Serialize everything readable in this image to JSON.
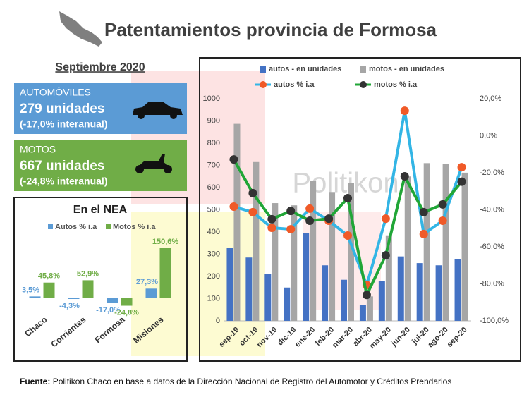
{
  "header": {
    "title": "Patentamientos provincia de Formosa",
    "period": "Septiembre 2020"
  },
  "cards": [
    {
      "label": "AUTOMÓVILES",
      "units": "279 unidades",
      "change": "(-17,0% interanual)"
    },
    {
      "label": "MOTOS",
      "units": "667 unidades",
      "change": "(-24,8% interanual)"
    }
  ],
  "chart_data": [
    {
      "type": "bar",
      "title": "En el NEA",
      "categories": [
        "Chaco",
        "Corrientes",
        "Formosa",
        "Misiones"
      ],
      "series": [
        {
          "name": "Autos % i.a",
          "color": "#5b9bd5",
          "values": [
            3.5,
            -4.3,
            -17.0,
            27.3
          ],
          "value_labels": [
            "3,5%",
            "-4,3%",
            "-17,0%",
            "27,3%"
          ]
        },
        {
          "name": "Motos % i.a",
          "color": "#70ad47",
          "values": [
            45.8,
            52.9,
            -24.8,
            150.6
          ],
          "value_labels": [
            "45,8%",
            "52,9%",
            "-24,8%",
            "150,6%"
          ]
        }
      ]
    },
    {
      "type": "combo",
      "watermark": "Politikon",
      "categories": [
        "sep-19",
        "oct-19",
        "nov-19",
        "dic-19",
        "ene-20",
        "feb-20",
        "mar-20",
        "abr-20",
        "may-20",
        "jun-20",
        "jul-20",
        "ago-20",
        "sep-20"
      ],
      "series": [
        {
          "name": "autos - en unidades",
          "type": "bar",
          "color": "#4472c4",
          "values": [
            330,
            285,
            210,
            150,
            395,
            250,
            185,
            70,
            178,
            290,
            260,
            250,
            279
          ]
        },
        {
          "name": "motos - en unidades",
          "type": "bar",
          "color": "#a6a6a6",
          "values": [
            887,
            715,
            530,
            520,
            630,
            580,
            620,
            110,
            385,
            650,
            710,
            705,
            667
          ]
        },
        {
          "name": "autos % i.a",
          "type": "line",
          "axis": "y2",
          "color": "#33b5e5",
          "marker_color": "#f05a28",
          "values": [
            -38.3,
            -41.3,
            -49.7,
            -50.5,
            -39.4,
            -45.9,
            -53.9,
            -80.6,
            -44.8,
            13.5,
            -53.1,
            -45.9,
            -17.0
          ]
        },
        {
          "name": "motos % i.a",
          "type": "line",
          "axis": "y2",
          "color": "#21a637",
          "marker_color": "#333333",
          "values": [
            -12.8,
            -31.0,
            -45.1,
            -40.6,
            -45.9,
            -44.8,
            -33.7,
            -86.0,
            -64.6,
            -21.9,
            -41.3,
            -37.1,
            -24.8
          ]
        }
      ],
      "ylim": [
        0,
        1000
      ],
      "yticks": [
        0,
        100,
        200,
        300,
        400,
        500,
        600,
        700,
        800,
        900,
        1000
      ],
      "y2lim": [
        -100,
        20
      ],
      "y2ticks": [
        {
          "value": -100,
          "label": "-100,0%"
        },
        {
          "value": -80,
          "label": "-80,0%"
        },
        {
          "value": -60,
          "label": "-60,0%"
        },
        {
          "value": -40,
          "label": "-40,0%"
        },
        {
          "value": -20,
          "label": "-20,0%"
        },
        {
          "value": 0,
          "label": "0,0%"
        },
        {
          "value": 20,
          "label": "20,0%"
        }
      ]
    }
  ],
  "footer": {
    "label": "Fuente:",
    "text": "Politikon Chaco en base a datos de la Dirección Nacional de Registro del Automotor y Créditos Prendarios"
  }
}
